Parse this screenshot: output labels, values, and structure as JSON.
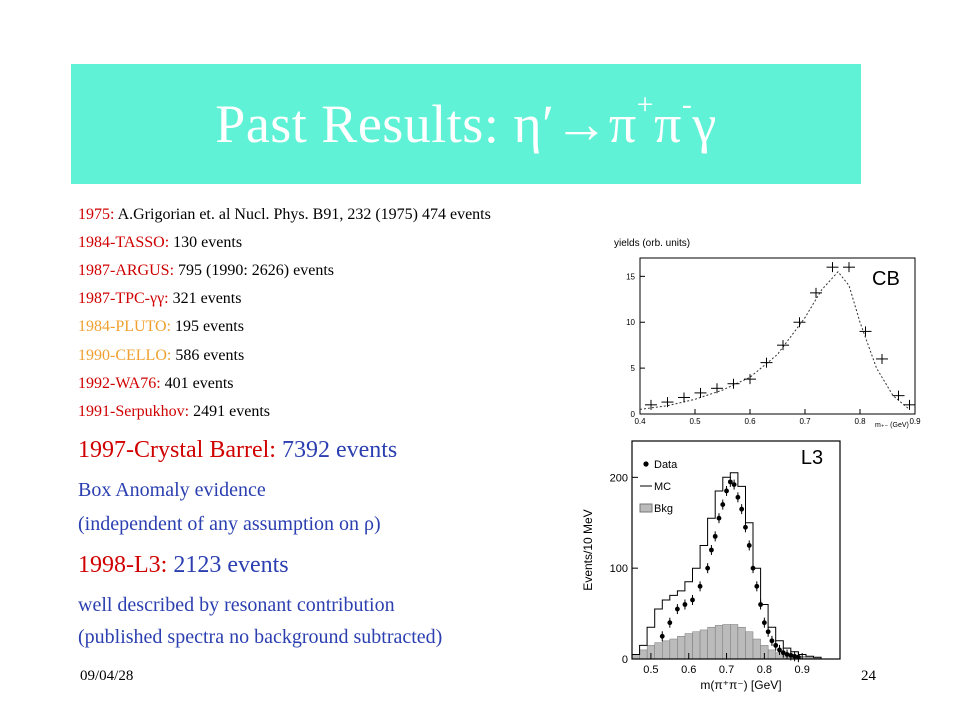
{
  "title": {
    "prefix": "Past Results: ",
    "eta": "η′",
    "arrow": "→",
    "pi1": "π",
    "plus": "+",
    "pi2": "π",
    "minus": "-",
    "gamma": "γ"
  },
  "colors": {
    "title_bg": "#5ff2d6",
    "red": "#d00000",
    "orange": "#f0a030",
    "blue": "#2b3fb0",
    "hist_gray": "#bbbbbb"
  },
  "references": [
    {
      "label": "1975:",
      "text": " A.Grigorian et. al Nucl. Phys. B91, 232 (1975) 474 events",
      "color": "red"
    },
    {
      "label": "1984-TASSO:",
      "text": " 130 events",
      "color": "red"
    },
    {
      "label": "1987-ARGUS:",
      "text": " 795 (1990: 2626) events",
      "color": "red"
    },
    {
      "label": "1987-TPC-γγ:",
      "text": " 321 events",
      "color": "red"
    },
    {
      "label": "1984-PLUTO:",
      "text": " 195 events",
      "color": "orange"
    },
    {
      "label": "1990-CELLO:",
      "text": "  586 events",
      "color": "orange"
    },
    {
      "label": "1992-WA76:",
      "text": " 401 events",
      "color": "red"
    },
    {
      "label": "1991-Serpukhov:",
      "text": " 2491 events",
      "color": "red"
    }
  ],
  "crystal_barrel": {
    "label": "1997-Crystal Barrel:",
    "text": " 7392 events"
  },
  "box_anomaly": "Box Anomaly evidence",
  "independent": "(independent of any assumption on ρ)",
  "l3": {
    "label": "1998-L3:",
    "text": " 2123 events"
  },
  "well_described": "well described by resonant contribution",
  "published": "(published spectra no background subtracted)",
  "footer": {
    "date": "09/04/28",
    "page": "24"
  },
  "chart_data": [
    {
      "type": "scatter",
      "tag": "CB",
      "ylabel": "yields (orb. units)",
      "xlabel": "m₊₋ (GeV)",
      "xlim": [
        0.4,
        0.9
      ],
      "ylim": [
        0,
        17
      ],
      "xticks": [
        "0.4",
        "0.5",
        "0.6",
        "0.7",
        "0.8",
        "0.9"
      ],
      "yticks": [
        "0",
        "5",
        "10",
        "15"
      ],
      "points": {
        "x": [
          0.42,
          0.45,
          0.48,
          0.51,
          0.54,
          0.57,
          0.6,
          0.63,
          0.66,
          0.69,
          0.72,
          0.75,
          0.78,
          0.81,
          0.84,
          0.87,
          0.89
        ],
        "y": [
          1.0,
          1.3,
          1.8,
          2.3,
          2.8,
          3.3,
          3.8,
          5.6,
          7.5,
          10.0,
          13.2,
          16.0,
          16.0,
          9.0,
          6.0,
          2.0,
          1.0
        ]
      },
      "fit": {
        "x": [
          0.4,
          0.45,
          0.5,
          0.55,
          0.6,
          0.65,
          0.7,
          0.73,
          0.76,
          0.78,
          0.8,
          0.83,
          0.86,
          0.89
        ],
        "y": [
          0.5,
          0.9,
          1.6,
          2.6,
          4.0,
          6.5,
          10.5,
          13.5,
          15.5,
          14.0,
          10.0,
          5.0,
          2.0,
          0.5
        ]
      }
    },
    {
      "type": "bar",
      "tag": "L3",
      "ylabel": "Events/10 MeV",
      "xlabel": "m(π⁺π⁻) [GeV]",
      "xlim": [
        0.45,
        1.0
      ],
      "ylim": [
        0,
        240
      ],
      "xticks": [
        "0.5",
        "0.6",
        "0.7",
        "0.8",
        "0.9"
      ],
      "yticks": [
        "0",
        "100",
        "200"
      ],
      "legend": [
        "Data",
        "MC",
        "Bkg"
      ],
      "bin_edges": [
        0.45,
        0.47,
        0.49,
        0.51,
        0.53,
        0.55,
        0.57,
        0.59,
        0.61,
        0.63,
        0.65,
        0.67,
        0.69,
        0.71,
        0.73,
        0.75,
        0.77,
        0.79,
        0.81,
        0.83,
        0.85,
        0.87,
        0.89,
        0.91,
        0.93,
        0.95
      ],
      "mc": [
        5,
        15,
        35,
        55,
        65,
        70,
        75,
        85,
        100,
        125,
        155,
        185,
        200,
        205,
        190,
        150,
        100,
        60,
        35,
        20,
        12,
        8,
        5,
        3,
        2
      ],
      "bkg": [
        5,
        10,
        15,
        18,
        20,
        22,
        25,
        28,
        30,
        32,
        35,
        37,
        38,
        38,
        35,
        30,
        22,
        15,
        10,
        7,
        5,
        4,
        3,
        2,
        1
      ],
      "data_x": [
        0.53,
        0.55,
        0.57,
        0.59,
        0.61,
        0.63,
        0.65,
        0.66,
        0.67,
        0.68,
        0.69,
        0.7,
        0.71,
        0.72,
        0.73,
        0.74,
        0.75,
        0.76,
        0.77,
        0.78,
        0.79,
        0.8,
        0.81,
        0.82,
        0.83,
        0.84,
        0.85,
        0.86,
        0.87,
        0.88,
        0.89
      ],
      "data_y": [
        25,
        40,
        55,
        60,
        65,
        80,
        100,
        120,
        135,
        155,
        170,
        185,
        195,
        192,
        178,
        165,
        145,
        125,
        100,
        80,
        60,
        40,
        30,
        20,
        15,
        10,
        7,
        5,
        4,
        3,
        2
      ]
    }
  ]
}
